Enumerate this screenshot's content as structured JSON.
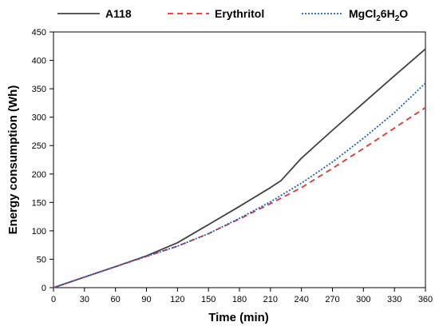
{
  "chart_data": {
    "type": "line",
    "title": "",
    "xlabel": "Time (min)",
    "ylabel": "Energy consumption (Wh)",
    "xlim": [
      0,
      360
    ],
    "ylim": [
      0,
      450
    ],
    "xticks": [
      0,
      30,
      60,
      90,
      120,
      150,
      180,
      210,
      240,
      270,
      300,
      330,
      360
    ],
    "yticks": [
      0,
      50,
      100,
      150,
      200,
      250,
      300,
      350,
      400,
      450
    ],
    "grid": false,
    "legend_position": "top",
    "series": [
      {
        "name": "A118",
        "color": "#404040",
        "style": "solid",
        "x": [
          0,
          30,
          60,
          90,
          120,
          150,
          180,
          210,
          220,
          240,
          270,
          300,
          330,
          360
        ],
        "y": [
          0,
          18.5,
          37,
          56,
          79,
          111,
          143,
          176,
          188,
          228,
          277,
          325,
          373,
          420
        ]
      },
      {
        "name": "Erythritol",
        "color": "#e8322e",
        "style": "dashed",
        "x": [
          0,
          30,
          60,
          90,
          120,
          150,
          180,
          210,
          240,
          270,
          300,
          330,
          360
        ],
        "y": [
          0,
          18.5,
          37,
          55,
          73,
          95,
          121,
          148,
          176,
          210,
          245,
          281,
          317
        ]
      },
      {
        "name": "MgCl",
        "name_sub1": "2",
        "name_mid": "6H",
        "name_sub2": "2",
        "name_end": "O",
        "color": "#1f5fbf",
        "style": "dotted",
        "x": [
          0,
          30,
          60,
          90,
          120,
          150,
          180,
          210,
          240,
          270,
          300,
          330,
          360
        ],
        "y": [
          0,
          18.5,
          37,
          55,
          73,
          95,
          122,
          151,
          184,
          221,
          263,
          308,
          360
        ]
      }
    ]
  }
}
